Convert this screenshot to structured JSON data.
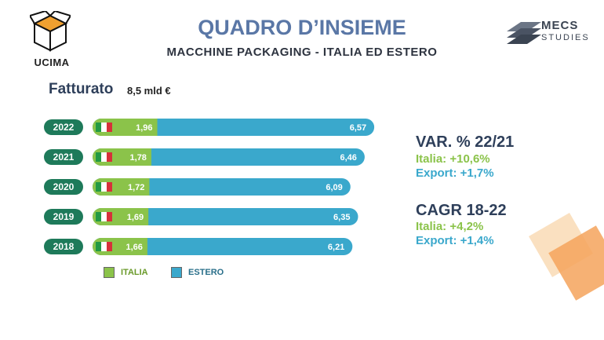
{
  "header": {
    "logo_left": "UCIMA",
    "title": "QUADRO D’INSIEME",
    "subtitle": "MACCHINE PACKAGING - ITALIA ED ESTERO",
    "logo_right_line1": "MECS",
    "logo_right_line2": "STUDIES"
  },
  "kpi": {
    "label": "Fatturato",
    "value": "8,5 mld €"
  },
  "stats": {
    "var_title": "VAR. % 22/21",
    "var_italia": "Italia: +10,6%",
    "var_export": "Export:  +1,7%",
    "cagr_title": "CAGR 18-22",
    "cagr_italia": "Italia: +4,2%",
    "cagr_export": "Export:  +1,4%"
  },
  "colors": {
    "italia": "#8bc34a",
    "estero": "#3aa8cc",
    "year_pill": "#1e7a5a",
    "title": "#5a77a6"
  },
  "chart_data": {
    "type": "bar",
    "orientation": "horizontal",
    "stacked": true,
    "categories": [
      "2022",
      "2021",
      "2020",
      "2019",
      "2018"
    ],
    "series": [
      {
        "name": "ITALIA",
        "values": [
          1.96,
          1.78,
          1.72,
          1.69,
          1.66
        ],
        "labels": [
          "1,96",
          "1,78",
          "1,72",
          "1,69",
          "1,66"
        ]
      },
      {
        "name": "ESTERO",
        "values": [
          6.57,
          6.46,
          6.09,
          6.35,
          6.21
        ],
        "labels": [
          "6,57",
          "6,46",
          "6,09",
          "6,35",
          "6,21"
        ]
      }
    ],
    "legend_position": "bottom-left"
  }
}
